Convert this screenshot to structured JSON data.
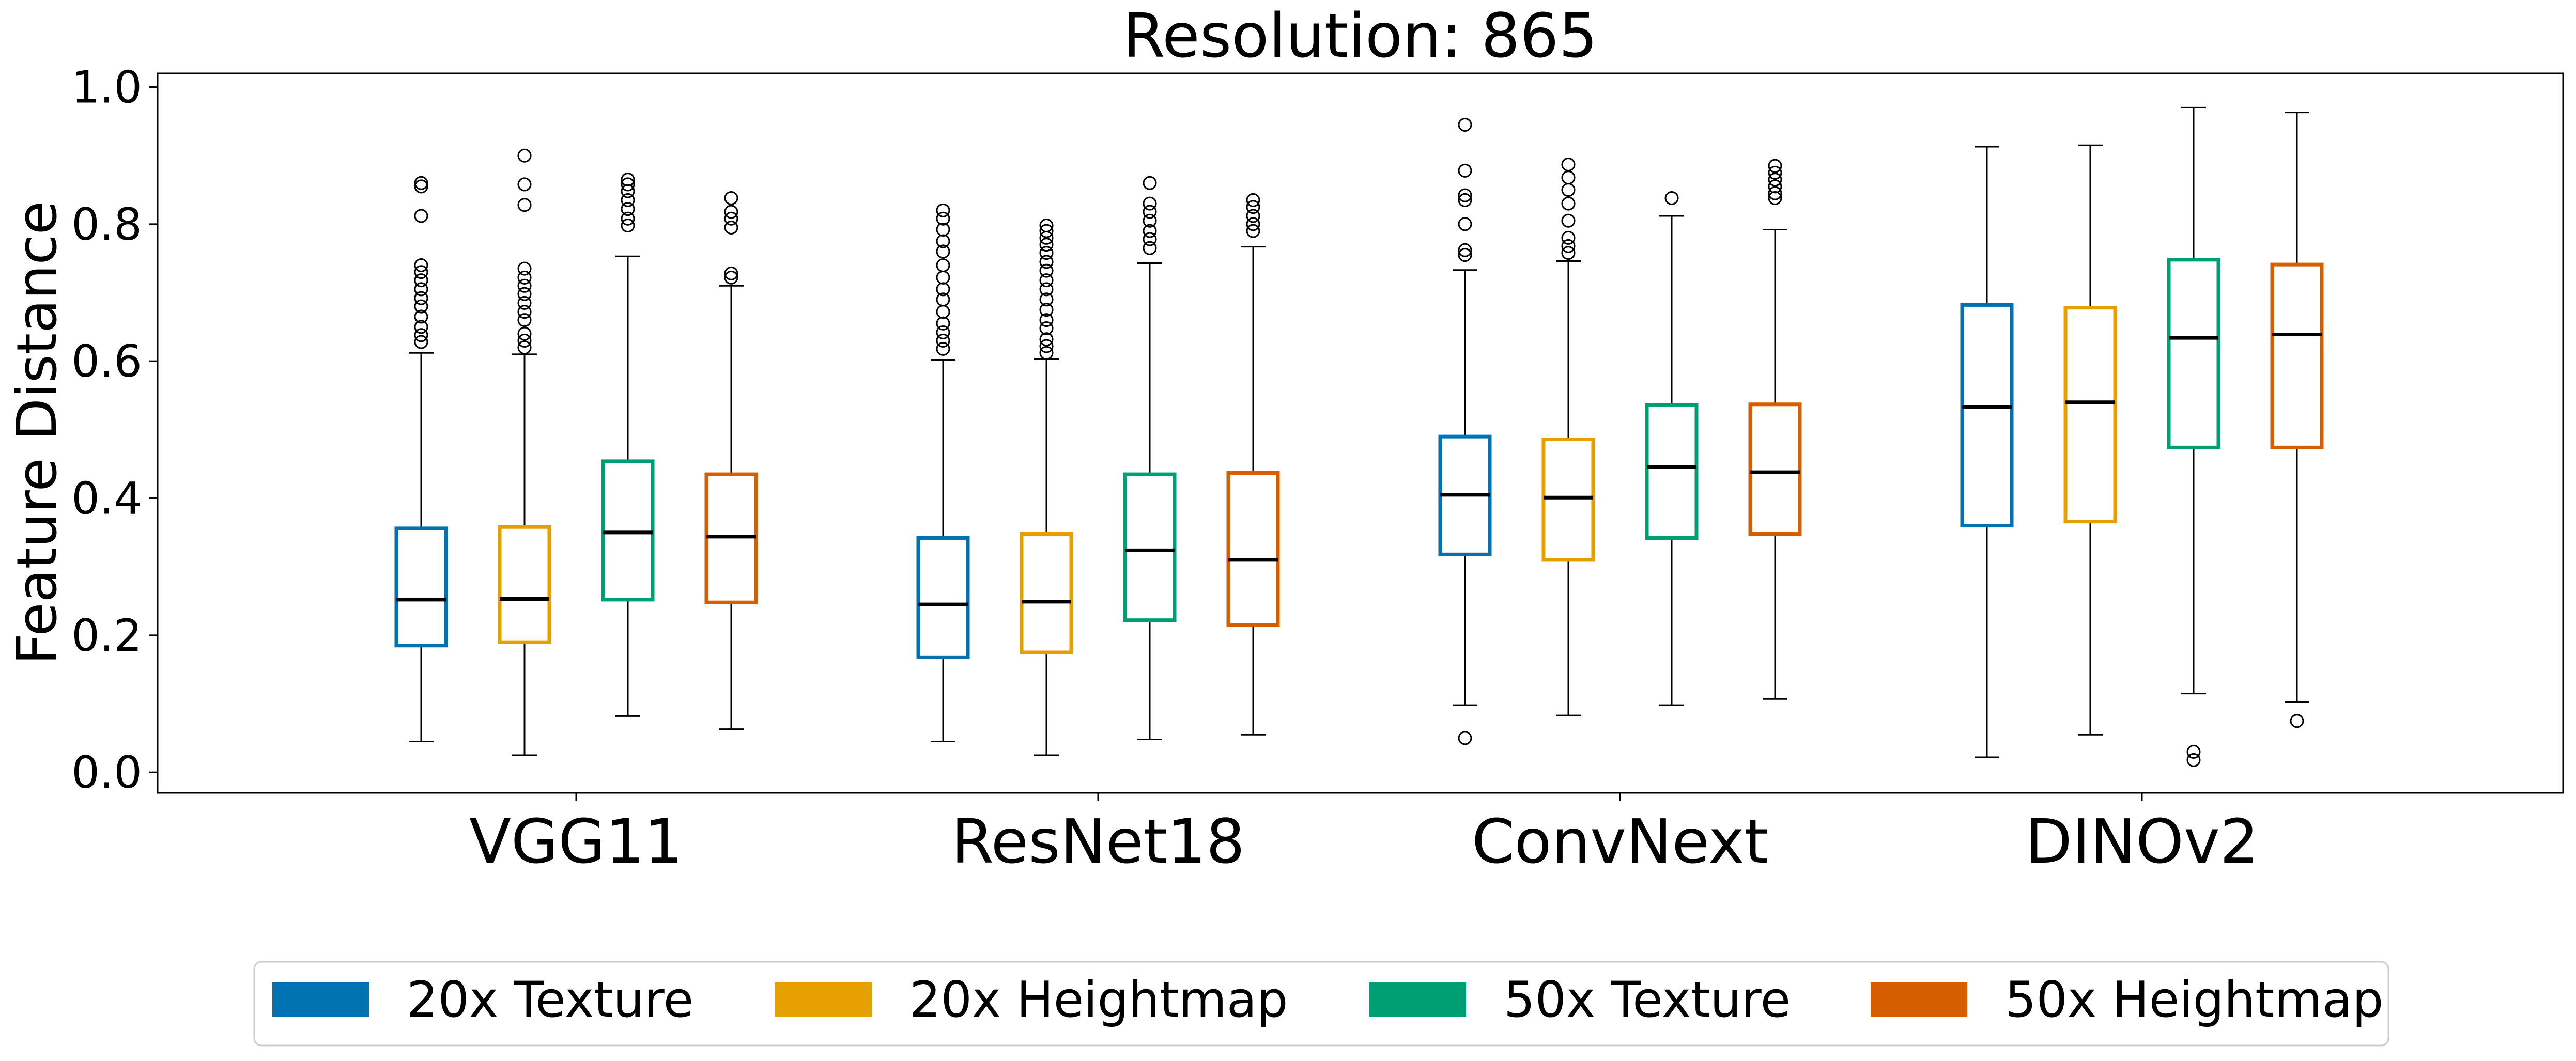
{
  "chart_data": {
    "type": "box",
    "title": "Resolution: 865",
    "xlabel": "",
    "ylabel": "Feature Distance",
    "ylim": [
      -0.03,
      1.02
    ],
    "yticks": [
      "0.0",
      "0.2",
      "0.4",
      "0.6",
      "0.8",
      "1.0"
    ],
    "categories": [
      "VGG11",
      "ResNet18",
      "ConvNext",
      "DINOv2"
    ],
    "legend_position": "bottom-center",
    "grid": false,
    "series": [
      {
        "name": "20x Texture",
        "color": "#0072b2",
        "boxes": [
          {
            "whislo": 0.045,
            "q1": 0.185,
            "med": 0.252,
            "q3": 0.356,
            "whishi": 0.612,
            "fliers": [
              0.86,
              0.855,
              0.812,
              0.74,
              0.73,
              0.718,
              0.705,
              0.692,
              0.68,
              0.665,
              0.65,
              0.638,
              0.628
            ]
          },
          {
            "whislo": 0.045,
            "q1": 0.168,
            "med": 0.245,
            "q3": 0.342,
            "whishi": 0.602,
            "fliers": [
              0.82,
              0.808,
              0.792,
              0.775,
              0.76,
              0.74,
              0.722,
              0.705,
              0.69,
              0.672,
              0.655,
              0.642,
              0.63,
              0.618
            ]
          },
          {
            "whislo": 0.098,
            "q1": 0.318,
            "med": 0.405,
            "q3": 0.49,
            "whishi": 0.733,
            "fliers": [
              0.945,
              0.878,
              0.842,
              0.835,
              0.8,
              0.762,
              0.755,
              0.05
            ]
          },
          {
            "whislo": 0.022,
            "q1": 0.36,
            "med": 0.533,
            "q3": 0.682,
            "whishi": 0.913,
            "fliers": []
          }
        ]
      },
      {
        "name": "20x Heightmap",
        "color": "#e69f00",
        "boxes": [
          {
            "whislo": 0.025,
            "q1": 0.19,
            "med": 0.253,
            "q3": 0.358,
            "whishi": 0.61,
            "fliers": [
              0.9,
              0.858,
              0.828,
              0.735,
              0.722,
              0.71,
              0.698,
              0.685,
              0.672,
              0.66,
              0.64,
              0.63,
              0.62
            ]
          },
          {
            "whislo": 0.025,
            "q1": 0.175,
            "med": 0.249,
            "q3": 0.348,
            "whishi": 0.603,
            "fliers": [
              0.798,
              0.79,
              0.78,
              0.77,
              0.758,
              0.745,
              0.732,
              0.718,
              0.705,
              0.69,
              0.675,
              0.66,
              0.648,
              0.632,
              0.622,
              0.612
            ]
          },
          {
            "whislo": 0.083,
            "q1": 0.31,
            "med": 0.401,
            "q3": 0.486,
            "whishi": 0.746,
            "fliers": [
              0.887,
              0.868,
              0.85,
              0.83,
              0.805,
              0.78,
              0.768,
              0.758
            ]
          },
          {
            "whislo": 0.055,
            "q1": 0.366,
            "med": 0.54,
            "q3": 0.678,
            "whishi": 0.915,
            "fliers": []
          }
        ]
      },
      {
        "name": "50x Texture",
        "color": "#009e73",
        "boxes": [
          {
            "whislo": 0.082,
            "q1": 0.252,
            "med": 0.35,
            "q3": 0.454,
            "whishi": 0.753,
            "fliers": [
              0.865,
              0.858,
              0.848,
              0.835,
              0.822,
              0.808,
              0.798
            ]
          },
          {
            "whislo": 0.048,
            "q1": 0.222,
            "med": 0.324,
            "q3": 0.435,
            "whishi": 0.743,
            "fliers": [
              0.86,
              0.83,
              0.818,
              0.805,
              0.79,
              0.778,
              0.765
            ]
          },
          {
            "whislo": 0.098,
            "q1": 0.342,
            "med": 0.446,
            "q3": 0.536,
            "whishi": 0.812,
            "fliers": [
              0.838
            ]
          },
          {
            "whislo": 0.115,
            "q1": 0.474,
            "med": 0.634,
            "q3": 0.748,
            "whishi": 0.97,
            "fliers": [
              0.03,
              0.018
            ]
          }
        ]
      },
      {
        "name": "50x Heightmap",
        "color": "#d55e00",
        "boxes": [
          {
            "whislo": 0.063,
            "q1": 0.248,
            "med": 0.344,
            "q3": 0.435,
            "whishi": 0.71,
            "fliers": [
              0.838,
              0.818,
              0.808,
              0.795,
              0.728,
              0.722
            ]
          },
          {
            "whislo": 0.055,
            "q1": 0.215,
            "med": 0.31,
            "q3": 0.437,
            "whishi": 0.767,
            "fliers": [
              0.835,
              0.825,
              0.812,
              0.8,
              0.79
            ]
          },
          {
            "whislo": 0.107,
            "q1": 0.348,
            "med": 0.438,
            "q3": 0.537,
            "whishi": 0.792,
            "fliers": [
              0.885,
              0.875,
              0.865,
              0.855,
              0.845,
              0.838
            ]
          },
          {
            "whislo": 0.103,
            "q1": 0.474,
            "med": 0.639,
            "q3": 0.741,
            "whishi": 0.963,
            "fliers": [
              0.075
            ]
          }
        ]
      }
    ]
  }
}
